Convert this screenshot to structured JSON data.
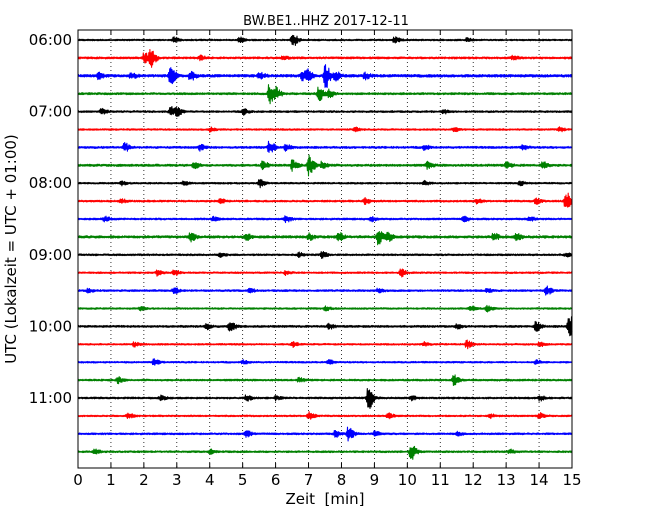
{
  "chart_data": {
    "type": "line",
    "title": "BW.BE1..HHZ 2017-12-11",
    "xlabel": "Zeit  [min]",
    "ylabel": "UTC (Lokalzeit = UTC + 01:00)",
    "xlim": [
      0,
      15
    ],
    "x_ticks": [
      "0",
      "1",
      "2",
      "3",
      "4",
      "5",
      "6",
      "7",
      "8",
      "9",
      "10",
      "11",
      "12",
      "13",
      "14",
      "15"
    ],
    "y_ticks": [
      {
        "label": "06:00",
        "row": 0
      },
      {
        "label": "07:00",
        "row": 4
      },
      {
        "label": "08:00",
        "row": 8
      },
      {
        "label": "09:00",
        "row": 12
      },
      {
        "label": "10:00",
        "row": 16
      },
      {
        "label": "11:00",
        "row": 20
      }
    ],
    "row_interval_minutes": 15,
    "grid": true,
    "colors": [
      "#000000",
      "#ff0000",
      "#0000ff",
      "#008000"
    ],
    "rows": [
      {
        "start": "06:00",
        "color": "#000000",
        "noise": 0.8,
        "events": [
          {
            "x": 2.9,
            "a": 2.5
          },
          {
            "x": 4.9,
            "a": 2.5
          },
          {
            "x": 6.5,
            "a": 7
          },
          {
            "x": 9.6,
            "a": 3
          },
          {
            "x": 11.8,
            "a": 2
          }
        ]
      },
      {
        "start": "06:15",
        "color": "#ff0000",
        "noise": 1.0,
        "events": [
          {
            "x": 2.2,
            "a": 9
          },
          {
            "x": 2.0,
            "a": 5
          },
          {
            "x": 3.7,
            "a": 2
          },
          {
            "x": 6.2,
            "a": 2
          },
          {
            "x": 13.2,
            "a": 2
          }
        ]
      },
      {
        "start": "06:30",
        "color": "#0000ff",
        "noise": 1.3,
        "events": [
          {
            "x": 0.6,
            "a": 3
          },
          {
            "x": 1.6,
            "a": 2.5
          },
          {
            "x": 2.8,
            "a": 9
          },
          {
            "x": 3.4,
            "a": 5
          },
          {
            "x": 5.5,
            "a": 3
          },
          {
            "x": 6.8,
            "a": 4
          },
          {
            "x": 6.95,
            "a": 5
          },
          {
            "x": 7.5,
            "a": 12
          },
          {
            "x": 7.8,
            "a": 4
          },
          {
            "x": 8.7,
            "a": 3
          }
        ]
      },
      {
        "start": "06:45",
        "color": "#008000",
        "noise": 1.0,
        "events": [
          {
            "x": 5.8,
            "a": 10
          },
          {
            "x": 6.0,
            "a": 5
          },
          {
            "x": 7.3,
            "a": 7
          },
          {
            "x": 7.6,
            "a": 4
          }
        ]
      },
      {
        "start": "07:00",
        "color": "#000000",
        "noise": 0.9,
        "events": [
          {
            "x": 0.7,
            "a": 2.5
          },
          {
            "x": 2.8,
            "a": 5
          },
          {
            "x": 3.0,
            "a": 4
          },
          {
            "x": 5.0,
            "a": 3
          },
          {
            "x": 11.1,
            "a": 2
          }
        ]
      },
      {
        "start": "07:15",
        "color": "#ff0000",
        "noise": 0.8,
        "events": [
          {
            "x": 4.0,
            "a": 2
          },
          {
            "x": 8.4,
            "a": 2
          },
          {
            "x": 11.4,
            "a": 2
          },
          {
            "x": 14.6,
            "a": 2
          }
        ]
      },
      {
        "start": "07:30",
        "color": "#0000ff",
        "noise": 1.0,
        "events": [
          {
            "x": 1.4,
            "a": 4
          },
          {
            "x": 3.7,
            "a": 3
          },
          {
            "x": 5.8,
            "a": 6
          },
          {
            "x": 6.3,
            "a": 3
          },
          {
            "x": 10.5,
            "a": 2.5
          },
          {
            "x": 13.5,
            "a": 2
          }
        ]
      },
      {
        "start": "07:45",
        "color": "#008000",
        "noise": 1.1,
        "events": [
          {
            "x": 3.5,
            "a": 3
          },
          {
            "x": 5.6,
            "a": 4
          },
          {
            "x": 6.5,
            "a": 5
          },
          {
            "x": 7.0,
            "a": 10
          },
          {
            "x": 7.4,
            "a": 4
          },
          {
            "x": 10.6,
            "a": 3
          },
          {
            "x": 13.0,
            "a": 3
          },
          {
            "x": 14.1,
            "a": 3
          }
        ]
      },
      {
        "start": "08:00",
        "color": "#000000",
        "noise": 0.8,
        "events": [
          {
            "x": 1.3,
            "a": 2
          },
          {
            "x": 3.2,
            "a": 2
          },
          {
            "x": 5.5,
            "a": 4
          },
          {
            "x": 10.5,
            "a": 2.5
          },
          {
            "x": 13.4,
            "a": 2
          }
        ]
      },
      {
        "start": "08:15",
        "color": "#ff0000",
        "noise": 0.9,
        "events": [
          {
            "x": 1.3,
            "a": 2
          },
          {
            "x": 4.3,
            "a": 2
          },
          {
            "x": 8.7,
            "a": 3
          },
          {
            "x": 12.1,
            "a": 2
          },
          {
            "x": 13.9,
            "a": 3
          },
          {
            "x": 14.8,
            "a": 9
          }
        ]
      },
      {
        "start": "08:30",
        "color": "#0000ff",
        "noise": 0.9,
        "events": [
          {
            "x": 0.8,
            "a": 2.5
          },
          {
            "x": 4.1,
            "a": 2
          },
          {
            "x": 6.3,
            "a": 3
          },
          {
            "x": 8.9,
            "a": 2
          },
          {
            "x": 11.7,
            "a": 2.5
          },
          {
            "x": 13.7,
            "a": 2
          }
        ]
      },
      {
        "start": "08:45",
        "color": "#008000",
        "noise": 1.2,
        "events": [
          {
            "x": 3.4,
            "a": 4
          },
          {
            "x": 5.1,
            "a": 3
          },
          {
            "x": 7.0,
            "a": 3
          },
          {
            "x": 7.9,
            "a": 4
          },
          {
            "x": 9.1,
            "a": 7
          },
          {
            "x": 9.4,
            "a": 4
          },
          {
            "x": 12.6,
            "a": 4
          },
          {
            "x": 13.3,
            "a": 3
          }
        ]
      },
      {
        "start": "09:00",
        "color": "#000000",
        "noise": 0.9,
        "events": [
          {
            "x": 4.3,
            "a": 2
          },
          {
            "x": 6.7,
            "a": 2
          },
          {
            "x": 7.4,
            "a": 3
          },
          {
            "x": 14.8,
            "a": 2
          }
        ]
      },
      {
        "start": "09:15",
        "color": "#ff0000",
        "noise": 0.8,
        "events": [
          {
            "x": 2.4,
            "a": 3
          },
          {
            "x": 2.9,
            "a": 3
          },
          {
            "x": 6.3,
            "a": 2
          },
          {
            "x": 9.8,
            "a": 3.5
          }
        ]
      },
      {
        "start": "09:30",
        "color": "#0000ff",
        "noise": 0.9,
        "events": [
          {
            "x": 0.3,
            "a": 2
          },
          {
            "x": 2.9,
            "a": 3
          },
          {
            "x": 5.2,
            "a": 2
          },
          {
            "x": 9.1,
            "a": 2
          },
          {
            "x": 12.4,
            "a": 2
          },
          {
            "x": 14.2,
            "a": 5
          }
        ]
      },
      {
        "start": "09:45",
        "color": "#008000",
        "noise": 0.8,
        "events": [
          {
            "x": 1.9,
            "a": 2
          },
          {
            "x": 7.5,
            "a": 2
          },
          {
            "x": 11.9,
            "a": 3
          },
          {
            "x": 12.4,
            "a": 4
          }
        ]
      },
      {
        "start": "10:00",
        "color": "#000000",
        "noise": 1.0,
        "events": [
          {
            "x": 3.9,
            "a": 3
          },
          {
            "x": 4.6,
            "a": 6
          },
          {
            "x": 7.6,
            "a": 3
          },
          {
            "x": 11.5,
            "a": 2.5
          },
          {
            "x": 13.9,
            "a": 5
          },
          {
            "x": 14.9,
            "a": 11
          }
        ]
      },
      {
        "start": "10:15",
        "color": "#ff0000",
        "noise": 0.8,
        "events": [
          {
            "x": 1.7,
            "a": 2
          },
          {
            "x": 6.5,
            "a": 2.5
          },
          {
            "x": 10.5,
            "a": 2
          },
          {
            "x": 11.8,
            "a": 4
          },
          {
            "x": 14.0,
            "a": 2
          }
        ]
      },
      {
        "start": "10:30",
        "color": "#0000ff",
        "noise": 0.8,
        "events": [
          {
            "x": 2.3,
            "a": 3
          },
          {
            "x": 5.0,
            "a": 2
          },
          {
            "x": 7.6,
            "a": 2
          },
          {
            "x": 13.9,
            "a": 2
          }
        ]
      },
      {
        "start": "10:45",
        "color": "#008000",
        "noise": 0.9,
        "events": [
          {
            "x": 1.2,
            "a": 3
          },
          {
            "x": 6.7,
            "a": 2
          },
          {
            "x": 11.4,
            "a": 5
          }
        ]
      },
      {
        "start": "11:00",
        "color": "#000000",
        "noise": 0.9,
        "events": [
          {
            "x": 2.5,
            "a": 2
          },
          {
            "x": 5.1,
            "a": 3
          },
          {
            "x": 6.0,
            "a": 2
          },
          {
            "x": 8.8,
            "a": 12
          },
          {
            "x": 10.1,
            "a": 2
          },
          {
            "x": 14.0,
            "a": 2.5
          }
        ]
      },
      {
        "start": "11:15",
        "color": "#ff0000",
        "noise": 0.8,
        "events": [
          {
            "x": 1.5,
            "a": 3
          },
          {
            "x": 7.0,
            "a": 4
          },
          {
            "x": 9.4,
            "a": 3
          },
          {
            "x": 12.5,
            "a": 2
          },
          {
            "x": 14.0,
            "a": 3
          }
        ]
      },
      {
        "start": "11:30",
        "color": "#0000ff",
        "noise": 0.9,
        "events": [
          {
            "x": 5.1,
            "a": 3
          },
          {
            "x": 7.8,
            "a": 3
          },
          {
            "x": 8.2,
            "a": 7
          },
          {
            "x": 9.0,
            "a": 3
          },
          {
            "x": 11.5,
            "a": 2
          }
        ]
      },
      {
        "start": "11:45",
        "color": "#008000",
        "noise": 0.9,
        "events": [
          {
            "x": 0.5,
            "a": 2
          },
          {
            "x": 4.0,
            "a": 2
          },
          {
            "x": 10.1,
            "a": 8
          },
          {
            "x": 13.1,
            "a": 2
          }
        ]
      }
    ]
  }
}
